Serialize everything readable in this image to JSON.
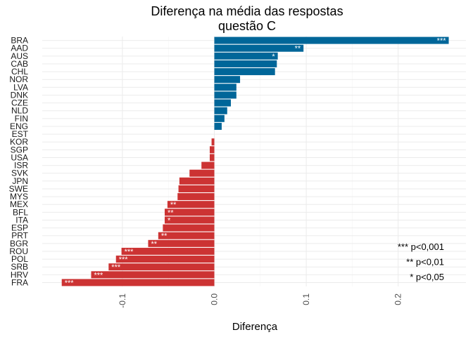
{
  "chart_data": {
    "type": "bar",
    "orientation": "horizontal",
    "title": "Diferença na média das respostas",
    "subtitle": "questão C",
    "xlabel": "Diferença",
    "ylabel": "",
    "xlim": [
      -0.17,
      0.26
    ],
    "x_ticks": [
      -0.1,
      0.0,
      0.1,
      0.2
    ],
    "x_tick_labels": [
      "-0.1",
      "0.0",
      "0.1",
      "0.2"
    ],
    "grid": true,
    "colors": {
      "positive": "#006699",
      "negative": "#CC3333"
    },
    "categories": [
      "BRA",
      "AAD",
      "AUS",
      "CAB",
      "CHL",
      "NOR",
      "LVA",
      "DNK",
      "CZE",
      "NLD",
      "FIN",
      "ENG",
      "EST",
      "KOR",
      "SGP",
      "USA",
      "ISR",
      "SVK",
      "JPN",
      "SWE",
      "MYS",
      "MEX",
      "BFL",
      "ITA",
      "ESP",
      "PRT",
      "BGR",
      "ROU",
      "POL",
      "SRB",
      "HRV",
      "FRA"
    ],
    "values": [
      0.255,
      0.097,
      0.069,
      0.068,
      0.066,
      0.028,
      0.024,
      0.024,
      0.018,
      0.014,
      0.011,
      0.008,
      0.0,
      -0.003,
      -0.005,
      -0.005,
      -0.014,
      -0.027,
      -0.038,
      -0.039,
      -0.04,
      -0.051,
      -0.054,
      -0.054,
      -0.056,
      -0.061,
      -0.072,
      -0.101,
      -0.107,
      -0.115,
      -0.134,
      -0.166
    ],
    "significance": [
      "***",
      "**",
      "*",
      "",
      "",
      "",
      "",
      "",
      "",
      "",
      "",
      "",
      "",
      "",
      "",
      "",
      "",
      "",
      "",
      "",
      "",
      "**",
      "**",
      "*",
      "",
      "**",
      "**",
      "***",
      "***",
      "***",
      "***",
      "***"
    ],
    "legend": [
      "*** p<0,001",
      "** p<0,01",
      "* p<0,05"
    ],
    "legend_position": "bottom-right"
  }
}
